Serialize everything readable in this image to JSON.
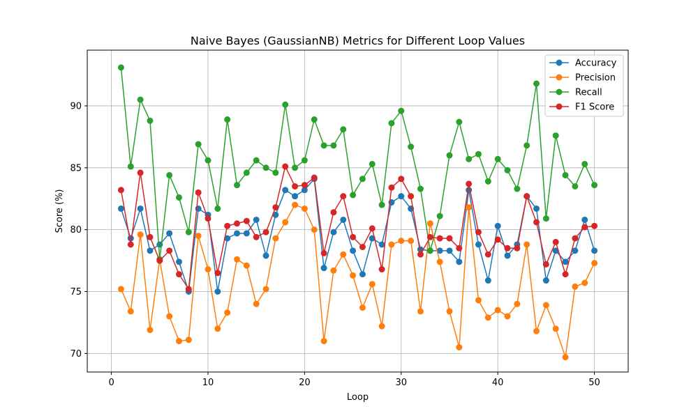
{
  "chart_data": {
    "type": "line",
    "title": "Naive Bayes (GaussianNB) Metrics for Different Loop Values",
    "xlabel": "Loop",
    "ylabel": "Score (%)",
    "xlim": [
      -2.5,
      53.5
    ],
    "ylim": [
      68.5,
      94.5
    ],
    "xticks": [
      0,
      10,
      20,
      30,
      40,
      50
    ],
    "yticks": [
      70,
      75,
      80,
      85,
      90
    ],
    "grid": true,
    "legend_position": "top-right",
    "marker": "circle",
    "x": [
      1,
      2,
      3,
      4,
      5,
      6,
      7,
      8,
      9,
      10,
      11,
      12,
      13,
      14,
      15,
      16,
      17,
      18,
      19,
      20,
      21,
      22,
      23,
      24,
      25,
      26,
      27,
      28,
      29,
      30,
      31,
      32,
      33,
      34,
      35,
      36,
      37,
      38,
      39,
      40,
      41,
      42,
      43,
      44,
      45,
      46,
      47,
      48,
      49,
      50
    ],
    "series": [
      {
        "name": "Accuracy",
        "color": "#1f77b4",
        "values": [
          81.7,
          79.3,
          81.7,
          78.3,
          78.8,
          79.7,
          77.4,
          75.0,
          81.7,
          81.2,
          75.0,
          79.3,
          79.7,
          79.7,
          80.8,
          77.9,
          81.2,
          83.2,
          82.7,
          83.2,
          84.1,
          76.9,
          79.8,
          80.8,
          78.3,
          76.4,
          79.3,
          78.8,
          82.2,
          82.7,
          81.7,
          78.4,
          78.3,
          78.3,
          78.3,
          77.4,
          83.2,
          78.8,
          75.9,
          80.3,
          77.9,
          78.8,
          82.7,
          81.7,
          75.9,
          78.3,
          77.4,
          78.3,
          80.8,
          78.3
        ]
      },
      {
        "name": "Precision",
        "color": "#ff7f0e",
        "values": [
          75.2,
          73.4,
          79.6,
          71.9,
          77.6,
          73.0,
          71.0,
          71.1,
          79.5,
          76.8,
          72.0,
          73.3,
          77.6,
          77.1,
          74.0,
          75.2,
          79.3,
          80.6,
          82.0,
          81.7,
          80.0,
          71.0,
          76.7,
          78.0,
          76.3,
          73.7,
          75.6,
          72.2,
          78.8,
          79.1,
          79.1,
          73.4,
          80.5,
          77.4,
          73.4,
          70.5,
          81.8,
          74.3,
          72.9,
          73.5,
          73.0,
          74.0,
          78.8,
          71.8,
          73.9,
          72.0,
          69.7,
          75.4,
          75.7,
          77.3
        ]
      },
      {
        "name": "Recall",
        "color": "#2ca02c",
        "values": [
          93.1,
          85.1,
          90.5,
          88.8,
          77.6,
          84.4,
          82.6,
          79.8,
          86.9,
          85.6,
          81.7,
          88.9,
          83.6,
          84.6,
          85.6,
          85.0,
          84.6,
          90.1,
          85.0,
          85.6,
          88.9,
          86.8,
          86.8,
          88.1,
          82.8,
          84.1,
          85.3,
          82.0,
          88.6,
          89.6,
          86.7,
          83.3,
          78.3,
          81.1,
          86.0,
          88.7,
          85.7,
          86.1,
          83.9,
          85.7,
          84.8,
          83.3,
          86.8,
          91.8,
          80.9,
          87.6,
          84.4,
          83.5,
          85.3,
          83.6
        ]
      },
      {
        "name": "F1 Score",
        "color": "#d62728",
        "values": [
          83.2,
          78.8,
          84.6,
          79.4,
          77.5,
          78.3,
          76.4,
          75.2,
          83.0,
          80.9,
          76.5,
          80.3,
          80.5,
          80.7,
          79.4,
          79.8,
          81.8,
          85.1,
          83.5,
          83.6,
          84.2,
          78.1,
          81.4,
          82.7,
          79.4,
          78.6,
          80.1,
          76.8,
          83.4,
          84.1,
          82.7,
          78.0,
          79.4,
          79.3,
          79.3,
          78.5,
          83.7,
          79.8,
          78.0,
          79.2,
          78.5,
          78.5,
          82.7,
          80.6,
          77.2,
          79.0,
          76.4,
          79.3,
          80.2,
          80.3
        ]
      }
    ]
  }
}
